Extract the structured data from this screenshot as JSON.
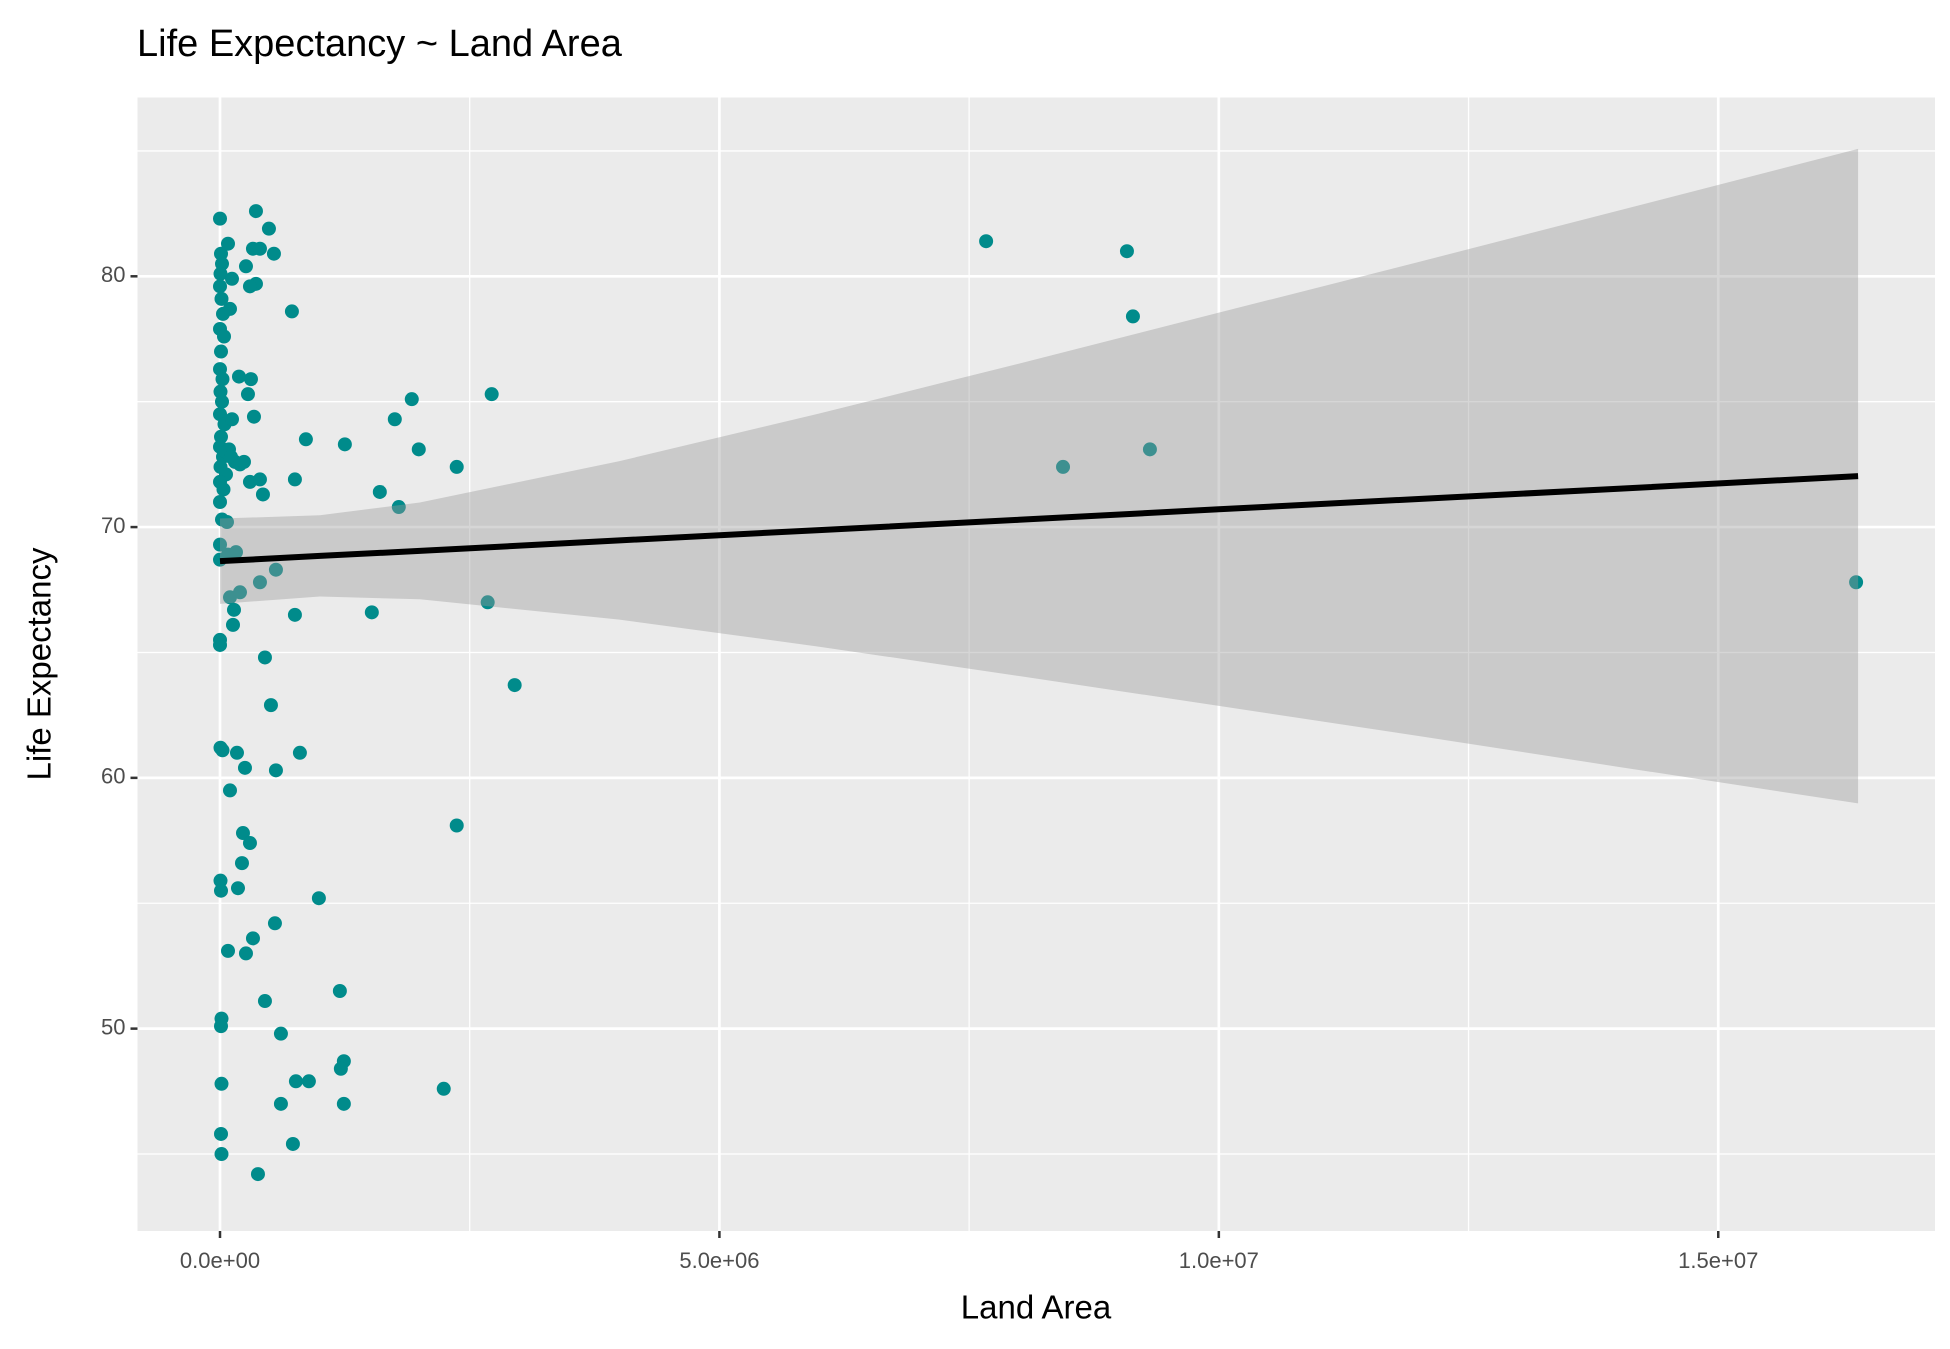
{
  "chart_data": {
    "type": "scatter",
    "title": "Life Expectancy ~ Land Area",
    "x_label": "Land Area",
    "y_label": "Life Expectancy",
    "xlim": [
      -826000,
      17170000
    ],
    "ylim": [
      41.93,
      87.13
    ],
    "xticks": [
      {
        "value": 0,
        "label": "0.0e+00"
      },
      {
        "value": 5000000,
        "label": "5.0e+06"
      },
      {
        "value": 10000000,
        "label": "1.0e+07"
      },
      {
        "value": 15000000,
        "label": "1.5e+07"
      }
    ],
    "yticks": [
      50,
      60,
      70,
      80
    ],
    "x_minor_ticks": [
      2500000,
      7500000,
      12500000
    ],
    "y_minor_ticks": [
      45,
      55,
      65,
      75,
      85
    ],
    "grid": true,
    "color": "#008b8b",
    "x": [
      0,
      10000,
      20000,
      5000,
      0,
      15000,
      30000,
      0,
      40000,
      10000,
      0,
      25000,
      5000,
      20000,
      0,
      45000,
      10000,
      0,
      30000,
      5000,
      60000,
      0,
      35000,
      0,
      20000,
      70000,
      0,
      0,
      0,
      0,
      5000,
      25000,
      5000,
      10000,
      15000,
      10000,
      15000,
      10000,
      15000,
      80000,
      120000,
      100000,
      60000,
      150000,
      120000,
      190000,
      90000,
      110000,
      200000,
      80000,
      160000,
      100000,
      140000,
      130000,
      200000,
      100000,
      170000,
      250000,
      230000,
      300000,
      220000,
      180000,
      80000,
      260000,
      330000,
      240000,
      280000,
      310000,
      340000,
      300000,
      400000,
      430000,
      360000,
      300000,
      260000,
      330000,
      400000,
      360000,
      490000,
      540000,
      720000,
      400000,
      560000,
      450000,
      510000,
      560000,
      800000,
      750000,
      750000,
      860000,
      1250000,
      550000,
      450000,
      610000,
      610000,
      760000,
      890000,
      730000,
      380000,
      990000,
      1200000,
      1240000,
      1210000,
      1240000,
      1520000,
      1600000,
      1750000,
      1790000,
      1920000,
      1990000,
      2370000,
      2370000,
      2240000,
      2720000,
      2680000,
      2950000,
      7670000,
      8440000,
      9080000,
      9140000,
      9310000,
      16380000
    ],
    "values": [
      82.3,
      80.9,
      80.5,
      80.1,
      79.6,
      79.1,
      78.5,
      77.9,
      77.6,
      77.0,
      76.3,
      75.9,
      75.4,
      75.0,
      74.5,
      74.1,
      73.6,
      73.2,
      72.8,
      72.4,
      72.1,
      71.8,
      71.5,
      71.0,
      70.3,
      70.2,
      69.3,
      68.7,
      65.5,
      65.3,
      61.2,
      61.1,
      55.9,
      55.5,
      50.4,
      50.1,
      47.8,
      45.8,
      45.0,
      81.3,
      79.9,
      78.7,
      73.0,
      72.6,
      74.3,
      76.0,
      73.1,
      72.8,
      72.5,
      68.9,
      69.0,
      67.2,
      66.7,
      66.1,
      67.4,
      59.5,
      61.0,
      60.4,
      57.8,
      57.4,
      56.6,
      55.6,
      53.1,
      53.0,
      53.6,
      72.6,
      75.3,
      75.9,
      74.4,
      71.8,
      71.9,
      71.3,
      79.7,
      79.6,
      80.4,
      81.1,
      81.1,
      82.6,
      81.9,
      80.9,
      78.6,
      67.8,
      68.3,
      64.8,
      62.9,
      60.3,
      61.0,
      66.5,
      71.9,
      73.5,
      73.3,
      54.2,
      51.1,
      49.8,
      47.0,
      47.9,
      47.9,
      45.4,
      44.2,
      55.2,
      51.5,
      48.7,
      48.4,
      47.0,
      66.6,
      71.4,
      74.3,
      70.8,
      75.1,
      73.1,
      72.4,
      58.1,
      47.6,
      75.3,
      67.0,
      63.7,
      81.4,
      72.4,
      81.0,
      78.4,
      73.1,
      67.8
    ],
    "fit": {
      "color": "#000000",
      "band_color": "#999999",
      "x": [
        0,
        1000000,
        2000000,
        4000000,
        6000000,
        8000000,
        10000000,
        12000000,
        14000000,
        16400000
      ],
      "values": [
        68.64,
        68.85,
        69.05,
        69.47,
        69.88,
        70.29,
        70.71,
        71.12,
        71.53,
        72.03
      ],
      "lower": [
        66.94,
        67.23,
        67.12,
        66.31,
        65.23,
        64.06,
        62.87,
        61.67,
        60.44,
        58.98
      ],
      "upper": [
        70.34,
        70.47,
        70.98,
        72.63,
        74.53,
        76.52,
        78.55,
        80.57,
        82.62,
        85.08
      ]
    }
  }
}
